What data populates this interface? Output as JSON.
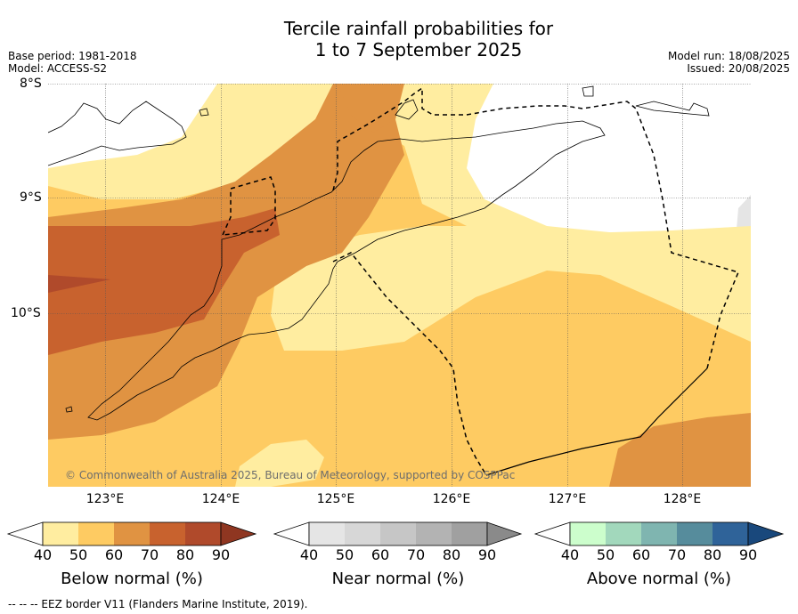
{
  "title_line1": "Tercile rainfall probabilities for",
  "title_line2": "1 to 7 September 2025",
  "left_meta": [
    "Base period: 1981-2018",
    "Model: ACCESS-S2"
  ],
  "right_meta": [
    "Model run: 18/08/2025",
    "Issued: 20/08/2025"
  ],
  "lat_labels": [
    "8°S",
    "9°S",
    "10°S"
  ],
  "lon_labels": [
    "123°E",
    "124°E",
    "125°E",
    "126°E",
    "127°E",
    "128°E"
  ],
  "copyright": "© Commonwealth of Australia 2025, Bureau of Meteorology, supported by COSPPac",
  "footnote": "-- -- -- EEZ border V11 (Flanders Marine Institute, 2019).",
  "colorbars": [
    {
      "title": "Below normal (%)",
      "ticks": [
        "40",
        "50",
        "60",
        "70",
        "80",
        "90"
      ],
      "colors": [
        "#ffeda0",
        "#fecb62",
        "#e09342",
        "#c8622e",
        "#b04a2b"
      ],
      "over": "#8f3621"
    },
    {
      "title": "Near normal (%)",
      "ticks": [
        "40",
        "50",
        "60",
        "70",
        "80",
        "90"
      ],
      "colors": [
        "#e5e5e5",
        "#d7d7d7",
        "#c6c6c6",
        "#b3b3b3",
        "#a0a0a0"
      ],
      "over": "#8a8a8a"
    },
    {
      "title": "Above normal (%)",
      "ticks": [
        "40",
        "50",
        "60",
        "70",
        "80",
        "90"
      ],
      "colors": [
        "#ccfecc",
        "#a2d8bc",
        "#7fb5b0",
        "#568c9c",
        "#2f6399"
      ],
      "over": "#19487c"
    }
  ]
}
